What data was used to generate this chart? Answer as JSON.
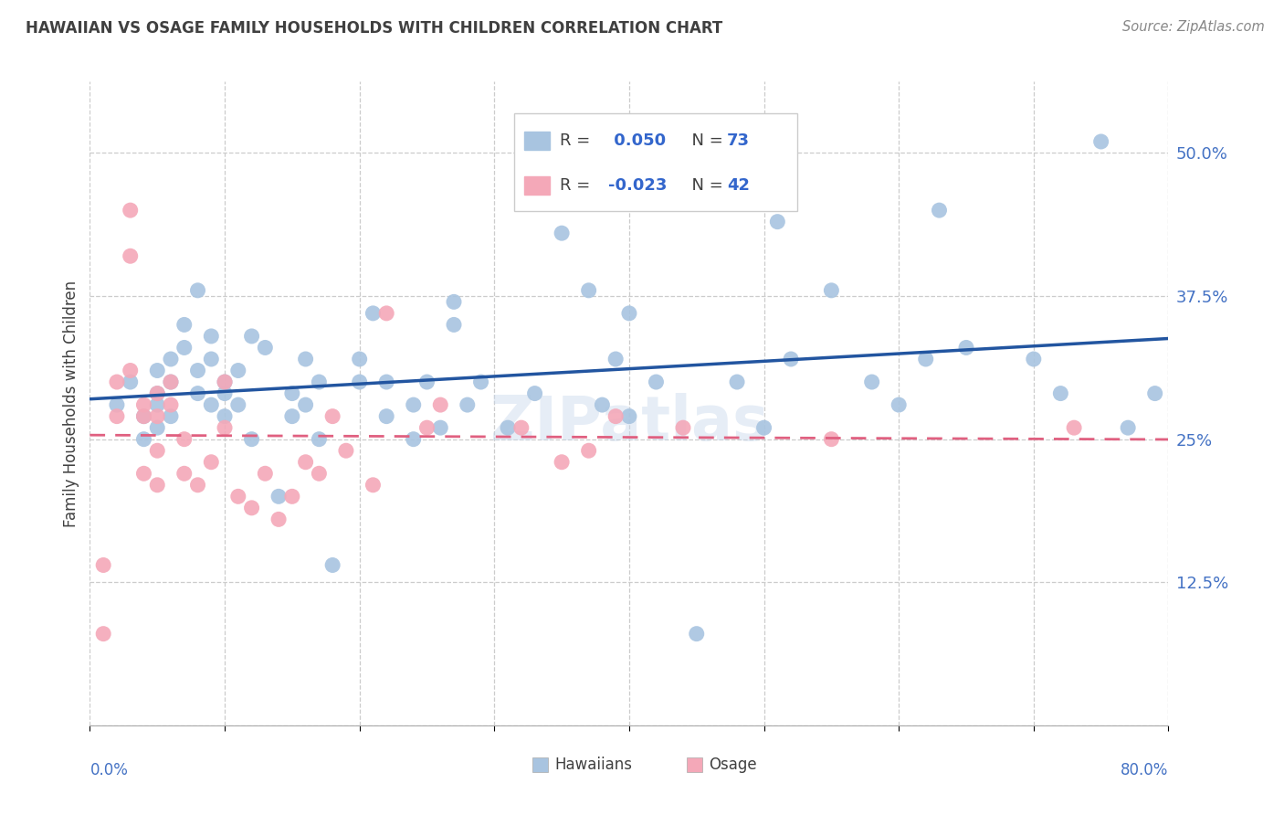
{
  "title": "HAWAIIAN VS OSAGE FAMILY HOUSEHOLDS WITH CHILDREN CORRELATION CHART",
  "source": "Source: ZipAtlas.com",
  "ylabel": "Family Households with Children",
  "xlim": [
    0,
    0.8
  ],
  "ylim": [
    0,
    0.5625
  ],
  "yticks": [
    0.0,
    0.125,
    0.25,
    0.375,
    0.5
  ],
  "xticks": [
    0.0,
    0.1,
    0.2,
    0.3,
    0.4,
    0.5,
    0.6,
    0.7,
    0.8
  ],
  "ytick_labels": [
    "",
    "12.5%",
    "25%",
    "37.5%",
    "50.0%"
  ],
  "xtick_labels": [
    "0.0%",
    "",
    "",
    "",
    "",
    "",
    "",
    "",
    "80.0%"
  ],
  "hawaiian_R": 0.05,
  "hawaiian_N": 73,
  "osage_R": -0.023,
  "osage_N": 42,
  "hawaiian_color": "#a8c4e0",
  "osage_color": "#f4a8b8",
  "hawaiian_line_color": "#2255a0",
  "osage_line_color": "#e06080",
  "background_color": "#ffffff",
  "grid_color": "#cccccc",
  "title_color": "#404040",
  "axis_label_color": "#4472c4",
  "hawaiians_x": [
    0.02,
    0.03,
    0.04,
    0.04,
    0.05,
    0.05,
    0.05,
    0.05,
    0.06,
    0.06,
    0.06,
    0.07,
    0.07,
    0.08,
    0.08,
    0.08,
    0.09,
    0.09,
    0.09,
    0.1,
    0.1,
    0.1,
    0.11,
    0.11,
    0.12,
    0.12,
    0.13,
    0.14,
    0.15,
    0.15,
    0.16,
    0.16,
    0.17,
    0.17,
    0.18,
    0.2,
    0.2,
    0.21,
    0.22,
    0.22,
    0.24,
    0.24,
    0.25,
    0.26,
    0.27,
    0.27,
    0.28,
    0.29,
    0.31,
    0.33,
    0.35,
    0.37,
    0.38,
    0.39,
    0.4,
    0.4,
    0.42,
    0.45,
    0.48,
    0.5,
    0.51,
    0.52,
    0.55,
    0.58,
    0.6,
    0.62,
    0.63,
    0.65,
    0.7,
    0.72,
    0.75,
    0.77,
    0.79
  ],
  "hawaiians_y": [
    0.28,
    0.3,
    0.25,
    0.27,
    0.31,
    0.29,
    0.26,
    0.28,
    0.32,
    0.3,
    0.27,
    0.33,
    0.35,
    0.29,
    0.31,
    0.38,
    0.32,
    0.28,
    0.34,
    0.3,
    0.27,
    0.29,
    0.31,
    0.28,
    0.34,
    0.25,
    0.33,
    0.2,
    0.29,
    0.27,
    0.32,
    0.28,
    0.25,
    0.3,
    0.14,
    0.3,
    0.32,
    0.36,
    0.3,
    0.27,
    0.28,
    0.25,
    0.3,
    0.26,
    0.35,
    0.37,
    0.28,
    0.3,
    0.26,
    0.29,
    0.43,
    0.38,
    0.28,
    0.32,
    0.27,
    0.36,
    0.3,
    0.08,
    0.3,
    0.26,
    0.44,
    0.32,
    0.38,
    0.3,
    0.28,
    0.32,
    0.45,
    0.33,
    0.32,
    0.29,
    0.51,
    0.26,
    0.29
  ],
  "osage_x": [
    0.01,
    0.01,
    0.02,
    0.02,
    0.03,
    0.03,
    0.03,
    0.04,
    0.04,
    0.04,
    0.05,
    0.05,
    0.05,
    0.05,
    0.06,
    0.06,
    0.07,
    0.07,
    0.08,
    0.09,
    0.1,
    0.1,
    0.11,
    0.12,
    0.13,
    0.14,
    0.15,
    0.16,
    0.17,
    0.18,
    0.19,
    0.21,
    0.22,
    0.25,
    0.26,
    0.32,
    0.35,
    0.37,
    0.39,
    0.44,
    0.55,
    0.73
  ],
  "osage_y": [
    0.08,
    0.14,
    0.27,
    0.3,
    0.45,
    0.41,
    0.31,
    0.28,
    0.27,
    0.22,
    0.29,
    0.27,
    0.24,
    0.21,
    0.3,
    0.28,
    0.25,
    0.22,
    0.21,
    0.23,
    0.3,
    0.26,
    0.2,
    0.19,
    0.22,
    0.18,
    0.2,
    0.23,
    0.22,
    0.27,
    0.24,
    0.21,
    0.36,
    0.26,
    0.28,
    0.26,
    0.23,
    0.24,
    0.27,
    0.26,
    0.25,
    0.26
  ],
  "watermark": "ZIPatlas",
  "legend_box_hawaiian": "#a8c4e0",
  "legend_box_osage": "#f4a8b8",
  "legend_text_color": "#404040",
  "legend_value_color": "#3366cc"
}
